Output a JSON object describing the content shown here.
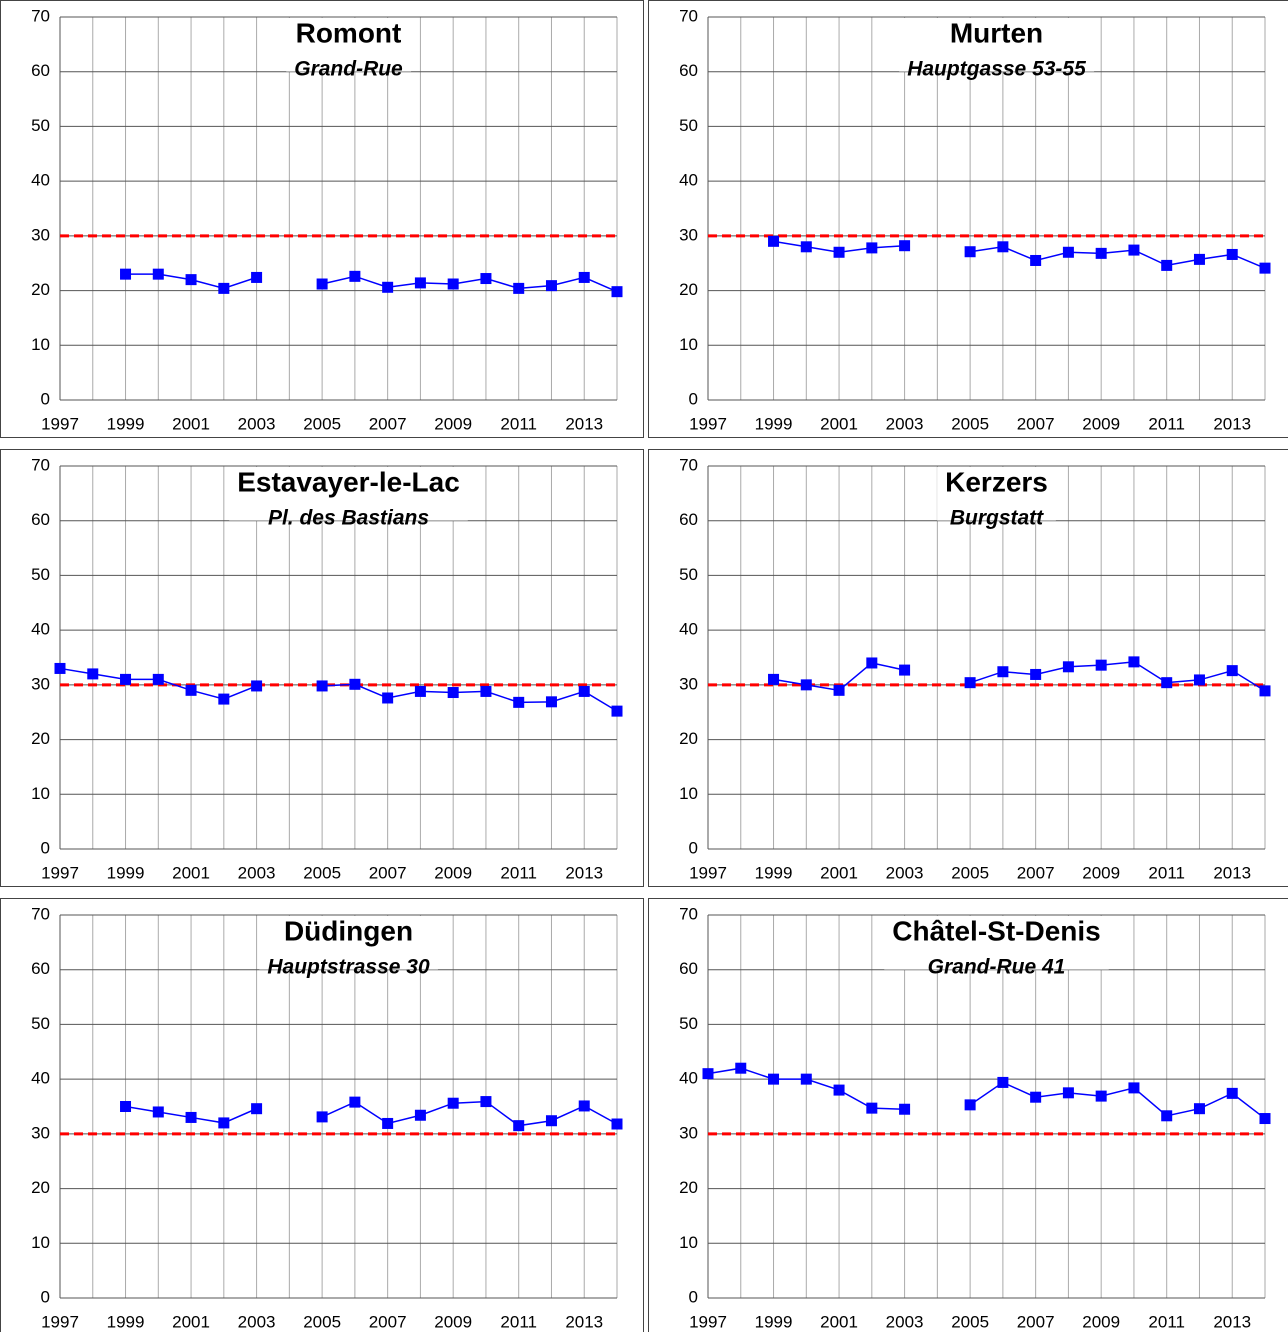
{
  "chart_data": [
    {
      "type": "line",
      "title": "Romont",
      "subtitle": "Grand-Rue",
      "x": [
        1997,
        1998,
        1999,
        2000,
        2001,
        2002,
        2003,
        2004,
        2005,
        2006,
        2007,
        2008,
        2009,
        2010,
        2011,
        2012,
        2013,
        2014
      ],
      "series": [
        {
          "color": "#0000ff",
          "values": [
            null,
            null,
            23,
            23,
            22,
            20.4,
            22.4,
            null,
            21.2,
            22.6,
            20.6,
            21.4,
            21.2,
            22.2,
            20.4,
            20.9,
            22.4,
            19.8
          ]
        }
      ],
      "xlim": [
        1997,
        2014
      ],
      "xticks": [
        1997,
        1999,
        2001,
        2003,
        2005,
        2007,
        2009,
        2011,
        2013
      ],
      "ylim": [
        0,
        70
      ],
      "yticks": [
        0,
        10,
        20,
        30,
        40,
        50,
        60,
        70
      ],
      "grid": true,
      "reference_line": {
        "value": 30,
        "color": "#ff0000",
        "dashed": true
      }
    },
    {
      "type": "line",
      "title": "Murten",
      "subtitle": "Hauptgasse 53-55",
      "x": [
        1997,
        1998,
        1999,
        2000,
        2001,
        2002,
        2003,
        2004,
        2005,
        2006,
        2007,
        2008,
        2009,
        2010,
        2011,
        2012,
        2013,
        2014
      ],
      "series": [
        {
          "color": "#0000ff",
          "values": [
            null,
            null,
            29,
            28,
            27,
            27.8,
            28.2,
            null,
            27.1,
            28,
            25.5,
            27,
            26.8,
            27.4,
            24.6,
            25.7,
            26.6,
            24.1
          ]
        }
      ],
      "xlim": [
        1997,
        2014
      ],
      "xticks": [
        1997,
        1999,
        2001,
        2003,
        2005,
        2007,
        2009,
        2011,
        2013
      ],
      "ylim": [
        0,
        70
      ],
      "yticks": [
        0,
        10,
        20,
        30,
        40,
        50,
        60,
        70
      ],
      "grid": true,
      "reference_line": {
        "value": 30,
        "color": "#ff0000",
        "dashed": true
      }
    },
    {
      "type": "line",
      "title": "Estavayer-le-Lac",
      "subtitle": "Pl. des Bastians",
      "x": [
        1997,
        1998,
        1999,
        2000,
        2001,
        2002,
        2003,
        2004,
        2005,
        2006,
        2007,
        2008,
        2009,
        2010,
        2011,
        2012,
        2013,
        2014
      ],
      "series": [
        {
          "color": "#0000ff",
          "values": [
            33,
            32,
            31,
            31,
            29,
            27.4,
            29.8,
            null,
            29.8,
            30.1,
            27.6,
            28.8,
            28.6,
            28.8,
            26.8,
            26.9,
            28.8,
            25.2
          ]
        }
      ],
      "xlim": [
        1997,
        2014
      ],
      "xticks": [
        1997,
        1999,
        2001,
        2003,
        2005,
        2007,
        2009,
        2011,
        2013
      ],
      "ylim": [
        0,
        70
      ],
      "yticks": [
        0,
        10,
        20,
        30,
        40,
        50,
        60,
        70
      ],
      "grid": true,
      "reference_line": {
        "value": 30,
        "color": "#ff0000",
        "dashed": true
      }
    },
    {
      "type": "line",
      "title": "Kerzers",
      "subtitle": "Burgstatt",
      "x": [
        1997,
        1998,
        1999,
        2000,
        2001,
        2002,
        2003,
        2004,
        2005,
        2006,
        2007,
        2008,
        2009,
        2010,
        2011,
        2012,
        2013,
        2014
      ],
      "series": [
        {
          "color": "#0000ff",
          "values": [
            null,
            null,
            31,
            30,
            29,
            34,
            32.7,
            null,
            30.4,
            32.4,
            31.9,
            33.3,
            33.6,
            34.2,
            30.4,
            30.9,
            32.6,
            28.9
          ]
        }
      ],
      "xlim": [
        1997,
        2014
      ],
      "xticks": [
        1997,
        1999,
        2001,
        2003,
        2005,
        2007,
        2009,
        2011,
        2013
      ],
      "ylim": [
        0,
        70
      ],
      "yticks": [
        0,
        10,
        20,
        30,
        40,
        50,
        60,
        70
      ],
      "grid": true,
      "reference_line": {
        "value": 30,
        "color": "#ff0000",
        "dashed": true
      }
    },
    {
      "type": "line",
      "title": "Düdingen",
      "subtitle": "Hauptstrasse 30",
      "x": [
        1997,
        1998,
        1999,
        2000,
        2001,
        2002,
        2003,
        2004,
        2005,
        2006,
        2007,
        2008,
        2009,
        2010,
        2011,
        2012,
        2013,
        2014
      ],
      "series": [
        {
          "color": "#0000ff",
          "values": [
            null,
            null,
            35,
            34,
            33,
            32,
            34.6,
            null,
            33.1,
            35.8,
            31.9,
            33.4,
            35.6,
            35.9,
            31.5,
            32.4,
            35.1,
            31.8
          ]
        }
      ],
      "xlim": [
        1997,
        2014
      ],
      "xticks": [
        1997,
        1999,
        2001,
        2003,
        2005,
        2007,
        2009,
        2011,
        2013
      ],
      "ylim": [
        0,
        70
      ],
      "yticks": [
        0,
        10,
        20,
        30,
        40,
        50,
        60,
        70
      ],
      "grid": true,
      "reference_line": {
        "value": 30,
        "color": "#ff0000",
        "dashed": true
      }
    },
    {
      "type": "line",
      "title": "Châtel-St-Denis",
      "subtitle": "Grand-Rue 41",
      "x": [
        1997,
        1998,
        1999,
        2000,
        2001,
        2002,
        2003,
        2004,
        2005,
        2006,
        2007,
        2008,
        2009,
        2010,
        2011,
        2012,
        2013,
        2014
      ],
      "series": [
        {
          "color": "#0000ff",
          "values": [
            41,
            42,
            40,
            40,
            38,
            34.7,
            34.5,
            null,
            35.3,
            39.4,
            36.7,
            37.5,
            36.9,
            38.4,
            33.3,
            34.6,
            37.4,
            32.8
          ]
        }
      ],
      "xlim": [
        1997,
        2014
      ],
      "xticks": [
        1997,
        1999,
        2001,
        2003,
        2005,
        2007,
        2009,
        2011,
        2013
      ],
      "ylim": [
        0,
        70
      ],
      "yticks": [
        0,
        10,
        20,
        30,
        40,
        50,
        60,
        70
      ],
      "grid": true,
      "reference_line": {
        "value": 30,
        "color": "#ff0000",
        "dashed": true
      }
    }
  ]
}
